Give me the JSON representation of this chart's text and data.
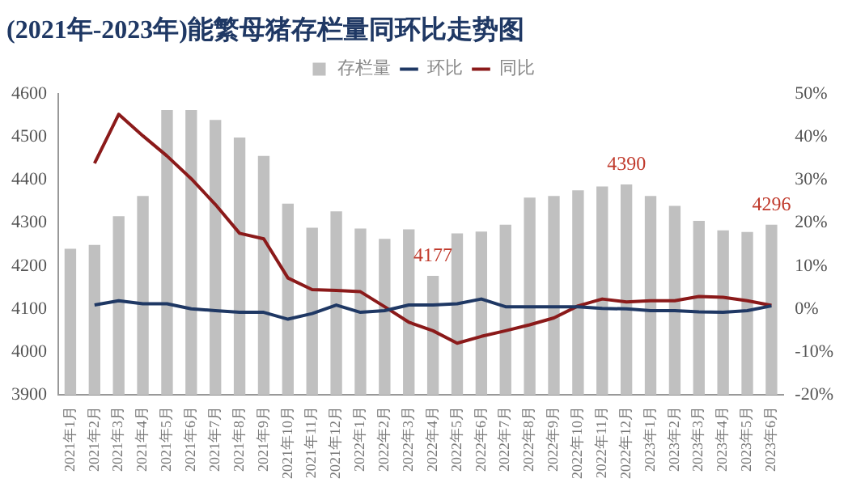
{
  "chart_data": {
    "type": "bar",
    "title": "(2021年-2023年)能繁母猪存栏量同环比走势图",
    "categories": [
      "2021年1月",
      "2021年2月",
      "2021年3月",
      "2021年4月",
      "2021年5月",
      "2021年6月",
      "2021年7月",
      "2021年8月",
      "2021年9月",
      "2021年10月",
      "2021年11月",
      "2021年12月",
      "2022年1月",
      "2022年2月",
      "2022年3月",
      "2022年4月",
      "2022年5月",
      "2022年6月",
      "2022年7月",
      "2022年8月",
      "2022年9月",
      "2022年10月",
      "2022年11月",
      "2022年12月",
      "2023年1月",
      "2023年2月",
      "2023年3月",
      "2023年4月",
      "2023年5月",
      "2023年6月"
    ],
    "series": [
      {
        "name": "存栏量",
        "color": "#c0c0c0",
        "values": [
          4240,
          4249,
          4316,
          4363,
          4563,
          4563,
          4540,
          4499,
          4456,
          4345,
          4289,
          4327,
          4287,
          4263,
          4285,
          4177,
          4276,
          4280,
          4296,
          4359,
          4363,
          4376,
          4385,
          4390,
          4363,
          4340,
          4305,
          4283,
          4279,
          4296
        ],
        "value_labels": [
          null,
          null,
          null,
          null,
          null,
          null,
          null,
          null,
          null,
          null,
          null,
          null,
          null,
          null,
          null,
          "4177",
          null,
          null,
          null,
          null,
          null,
          null,
          null,
          "4390",
          null,
          null,
          null,
          null,
          null,
          "4296"
        ]
      },
      {
        "name": "环比",
        "type": "line",
        "axis": "y2",
        "color": "#1f3864",
        "values": [
          null,
          0.9,
          1.9,
          1.2,
          1.2,
          0.0,
          -0.4,
          -0.8,
          -0.8,
          -2.4,
          -1.1,
          0.9,
          -0.8,
          -0.4,
          0.9,
          0.9,
          1.2,
          2.3,
          0.5,
          0.5,
          0.5,
          0.5,
          0.1,
          0.0,
          -0.4,
          -0.4,
          -0.7,
          -0.8,
          -0.4,
          0.7
        ]
      },
      {
        "name": "同比",
        "type": "line",
        "axis": "y2",
        "color": "#8b1a1a",
        "values": [
          null,
          33.9,
          45.3,
          40.3,
          35.6,
          30.3,
          24.3,
          17.6,
          16.3,
          7.2,
          4.5,
          4.3,
          4.0,
          0.5,
          -3.1,
          -5.1,
          -8.0,
          -6.4,
          -5.1,
          -3.7,
          -2.1,
          0.7,
          2.3,
          1.6,
          1.9,
          1.9,
          2.9,
          2.7,
          1.9,
          0.8
        ]
      }
    ],
    "ylim": [
      3900,
      4600
    ],
    "yticks": [
      3900,
      4000,
      4100,
      4200,
      4300,
      4400,
      4500,
      4600
    ],
    "y2lim": [
      -20,
      50
    ],
    "y2ticks": [
      {
        "value": -20,
        "label": "-20%"
      },
      {
        "value": -10,
        "label": "-10%"
      },
      {
        "value": 0,
        "label": "0%"
      },
      {
        "value": 10,
        "label": "10%"
      },
      {
        "value": 20,
        "label": "20%"
      },
      {
        "value": 30,
        "label": "30%"
      },
      {
        "value": 40,
        "label": "40%"
      },
      {
        "value": 50,
        "label": "50%"
      }
    ],
    "grid": false,
    "legend": "top",
    "marker": "none",
    "line_style": "solid"
  }
}
